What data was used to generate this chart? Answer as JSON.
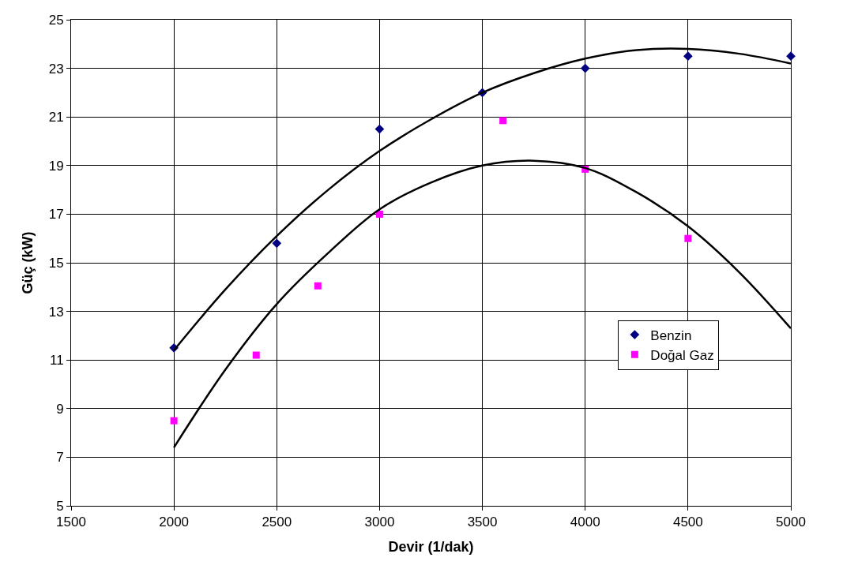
{
  "chart_data": {
    "type": "scatter",
    "xlabel": "Devir (1/dak)",
    "ylabel": "Güç (kW)",
    "xlim": [
      1500,
      5000
    ],
    "xticks": [
      1500,
      2000,
      2500,
      3000,
      3500,
      4000,
      4500,
      5000
    ],
    "ylim": [
      5,
      25
    ],
    "yticks": [
      5,
      7,
      9,
      11,
      13,
      15,
      17,
      19,
      21,
      23,
      25
    ],
    "grid": true,
    "legend": "bottom right",
    "series": [
      {
        "name": "Benzin",
        "color": "#000080",
        "marker": "diamond",
        "x": [
          2000,
          2500,
          3000,
          3500,
          4000,
          4500,
          5000
        ],
        "values": [
          11.5,
          15.8,
          20.5,
          22.0,
          23.0,
          23.5,
          23.5
        ]
      },
      {
        "name": "Doğal Gaz",
        "color": "#ff00ff",
        "marker": "square",
        "x": [
          2000,
          2400,
          2700,
          3000,
          3600,
          4000,
          4500
        ],
        "values": [
          8.5,
          11.2,
          14.05,
          17.0,
          20.85,
          18.85,
          16.0
        ]
      },
      {
        "type": "line",
        "color": "#000000",
        "marker": "none",
        "x": [
          2000,
          2250,
          2500,
          2750,
          3000,
          3250,
          3500,
          3750,
          4000,
          4250,
          4500,
          4750,
          5000
        ],
        "values": [
          11.4,
          13.9,
          16.1,
          18.0,
          19.6,
          20.9,
          22.0,
          22.8,
          23.4,
          23.75,
          23.8,
          23.6,
          23.2
        ]
      },
      {
        "type": "line",
        "color": "#000000",
        "marker": "none",
        "x": [
          2000,
          2250,
          2500,
          2750,
          3000,
          3250,
          3500,
          3750,
          4000,
          4250,
          4500,
          4750,
          5000
        ],
        "values": [
          7.4,
          10.6,
          13.3,
          15.4,
          17.2,
          18.3,
          19.0,
          19.2,
          18.9,
          17.9,
          16.5,
          14.6,
          12.3
        ]
      }
    ]
  }
}
